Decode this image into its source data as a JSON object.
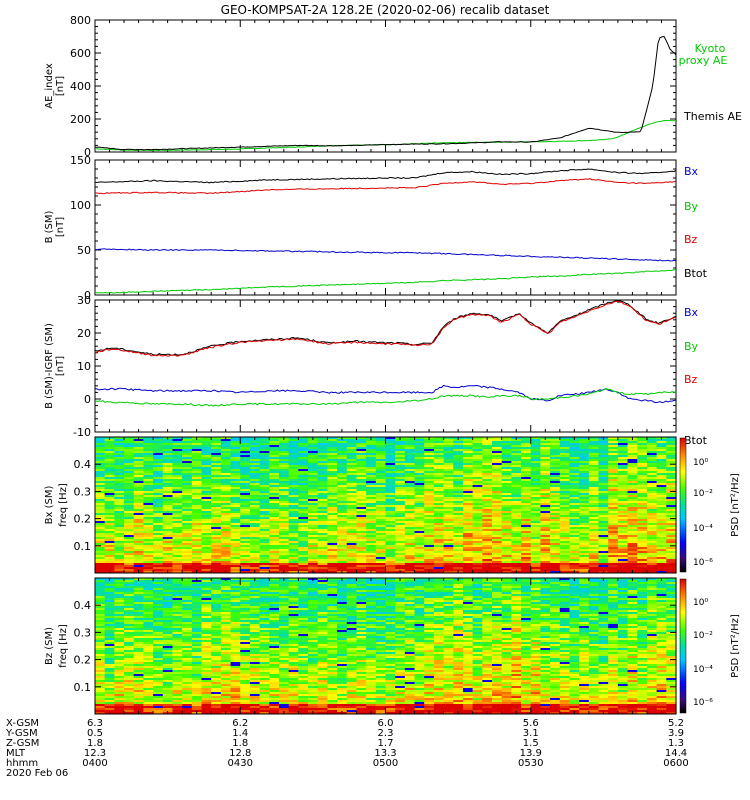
{
  "title": "GEO-KOMPSAT-2A 128.2E (2020-02-06) recalib dataset",
  "colors": {
    "black": "#000000",
    "red": "#dd0000",
    "blue": "#0000cc",
    "green": "#00cc00"
  },
  "chart_data": [
    {
      "id": "ae",
      "type": "line",
      "ylabel": "AE_index",
      "yunit": "[nT]",
      "ylim": [
        0,
        800
      ],
      "yticks": [
        0,
        200,
        400,
        600,
        800
      ],
      "legend": [
        "Kyoto",
        "proxy AE",
        "Themis AE"
      ],
      "x": [
        0,
        5,
        10,
        15,
        20,
        25,
        30,
        35,
        40,
        45,
        50,
        55,
        60,
        65,
        70,
        75,
        80,
        85,
        88,
        90,
        92,
        94,
        96,
        97,
        98,
        99,
        100
      ],
      "series": [
        {
          "name": "Kyoto proxy AE",
          "color": "green",
          "values": [
            20,
            12,
            10,
            12,
            15,
            18,
            25,
            30,
            38,
            42,
            45,
            50,
            55,
            58,
            60,
            62,
            65,
            70,
            75,
            90,
            120,
            150,
            175,
            185,
            190,
            190,
            190
          ]
        },
        {
          "name": "Themis AE",
          "color": "black",
          "values": [
            30,
            15,
            15,
            20,
            25,
            30,
            35,
            40,
            38,
            40,
            45,
            48,
            50,
            55,
            62,
            60,
            85,
            145,
            130,
            118,
            120,
            125,
            400,
            690,
            700,
            620,
            590
          ]
        }
      ]
    },
    {
      "id": "bsm",
      "type": "line",
      "ylabel": "B (SM)",
      "yunit": "[nT]",
      "ylim": [
        0,
        150
      ],
      "yticks": [
        0,
        50,
        100,
        150
      ],
      "legend": [
        "Bx",
        "By",
        "Bz",
        "Btot"
      ],
      "x": [
        0,
        10,
        20,
        30,
        40,
        50,
        55,
        60,
        65,
        70,
        75,
        80,
        85,
        90,
        95,
        100
      ],
      "series": [
        {
          "name": "Btot",
          "color": "black",
          "values": [
            125,
            127,
            125,
            128,
            129,
            130,
            130,
            136,
            137,
            134,
            135,
            138,
            140,
            136,
            135,
            138
          ]
        },
        {
          "name": "Bz",
          "color": "red",
          "values": [
            113,
            114,
            113,
            117,
            118,
            119,
            119,
            124,
            126,
            123,
            124,
            127,
            129,
            125,
            124,
            126
          ]
        },
        {
          "name": "Bx",
          "color": "blue",
          "values": [
            51,
            50,
            50,
            49,
            48,
            47,
            47,
            46,
            45,
            44,
            43,
            42,
            41,
            40,
            39,
            38
          ]
        },
        {
          "name": "By",
          "color": "green",
          "values": [
            2,
            4,
            6,
            9,
            11,
            13,
            14,
            16,
            17,
            18,
            20,
            21,
            23,
            24,
            26,
            28
          ]
        }
      ]
    },
    {
      "id": "bigrf",
      "type": "line",
      "ylabel": "B (SM)-IGRF (SM)",
      "yunit": "[nT]",
      "ylim": [
        -10,
        30
      ],
      "yticks": [
        -10,
        0,
        10,
        20,
        30
      ],
      "legend": [
        "Bx",
        "By",
        "Bz",
        "Btot"
      ],
      "x": [
        0,
        3,
        5,
        10,
        15,
        20,
        25,
        30,
        35,
        40,
        45,
        50,
        52,
        55,
        58,
        60,
        62,
        65,
        68,
        70,
        73,
        75,
        78,
        80,
        83,
        85,
        88,
        90,
        92,
        95,
        97,
        100
      ],
      "series": [
        {
          "name": "Btot",
          "color": "black",
          "values": [
            14.5,
            15.5,
            15,
            13.5,
            13.5,
            16,
            17.5,
            18,
            18.5,
            17,
            17.5,
            17,
            17,
            16.5,
            17,
            22,
            24.5,
            26,
            25.5,
            23.5,
            26,
            23,
            20,
            23.5,
            25.5,
            27,
            29,
            30,
            28.5,
            24,
            23,
            25
          ]
        },
        {
          "name": "Bz",
          "color": "red",
          "values": [
            14.2,
            15.2,
            14.7,
            13.2,
            13.2,
            15.7,
            17.2,
            17.7,
            18.2,
            16.7,
            17.2,
            16.7,
            16.7,
            16.2,
            16.7,
            21.7,
            24.2,
            25.7,
            25.2,
            23.2,
            25.7,
            22.7,
            19.7,
            23.2,
            25.2,
            26.7,
            28.7,
            29.7,
            28.2,
            23.7,
            22.7,
            24.7
          ]
        },
        {
          "name": "Bx",
          "color": "blue",
          "values": [
            3,
            3,
            3,
            2.5,
            2.5,
            2.5,
            2,
            2.5,
            2.5,
            2,
            2,
            2,
            2,
            2,
            2,
            4,
            3.5,
            4,
            3.5,
            3,
            2,
            0,
            -0.5,
            1,
            1.5,
            2,
            3,
            2,
            0,
            -0.5,
            -1,
            -0.5
          ]
        },
        {
          "name": "By",
          "color": "green",
          "values": [
            -0.5,
            -1,
            -1,
            -1.5,
            -1.5,
            -2,
            -1.5,
            -1.5,
            -1.5,
            -1.5,
            -1,
            -1,
            -1,
            -0.5,
            0,
            1,
            1,
            1,
            0.5,
            1,
            1,
            0,
            0,
            0.5,
            1,
            1.5,
            3,
            2,
            1.5,
            1.5,
            2,
            2
          ]
        }
      ]
    },
    {
      "id": "bxspec",
      "type": "heatmap",
      "ylabel": "Bx (SM)",
      "yunit": "freq [Hz]",
      "ylim": [
        0,
        0.5
      ],
      "yticks": [
        0.1,
        0.2,
        0.3,
        0.4
      ],
      "colorbar_label": "PSD [nT²/Hz]",
      "colorbar_ticks": [
        "10⁰",
        "10⁻²",
        "10⁻⁴",
        "10⁻⁶"
      ]
    },
    {
      "id": "bzspec",
      "type": "heatmap",
      "ylabel": "Bz (SM)",
      "yunit": "freq [Hz]",
      "ylim": [
        0,
        0.5
      ],
      "yticks": [
        0.1,
        0.2,
        0.3,
        0.4
      ],
      "colorbar_label": "PSD [nT²/Hz]",
      "colorbar_ticks": [
        "10⁰",
        "10⁻²",
        "10⁻⁴",
        "10⁻⁶"
      ]
    }
  ],
  "xaxis": {
    "rows": [
      {
        "label": "X-GSM",
        "values": [
          "6.3",
          "6.2",
          "6.0",
          "5.6",
          "5.2"
        ]
      },
      {
        "label": "Y-GSM",
        "values": [
          "0.5",
          "1.4",
          "2.3",
          "3.1",
          "3.9"
        ]
      },
      {
        "label": "Z-GSM",
        "values": [
          "1.8",
          "1.8",
          "1.7",
          "1.5",
          "1.3"
        ]
      },
      {
        "label": "MLT",
        "values": [
          "12.3",
          "12.8",
          "13.3",
          "13.9",
          "14.4"
        ]
      },
      {
        "label": "hhmm",
        "values": [
          "0400",
          "0430",
          "0500",
          "0530",
          "0600"
        ]
      }
    ],
    "date": "2020 Feb 06"
  }
}
